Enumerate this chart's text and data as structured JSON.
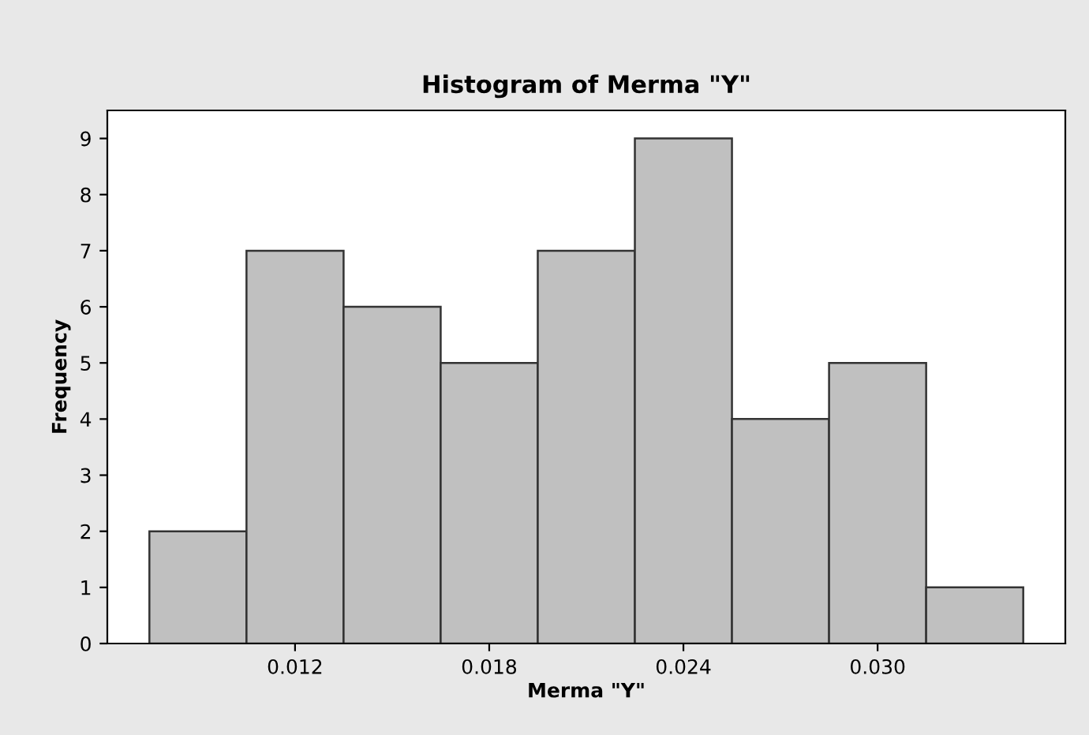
{
  "chart_data": {
    "type": "histogram",
    "title": "Histogram of Merma \"Y\"",
    "xlabel": "Merma \"Y\"",
    "ylabel": "Frequency",
    "bins": [
      0.0075,
      0.0105,
      0.0135,
      0.0165,
      0.0195,
      0.0225,
      0.0255,
      0.0285,
      0.0315,
      0.0345
    ],
    "values": [
      2,
      7,
      6,
      5,
      7,
      9,
      4,
      5,
      1
    ],
    "color": "#c0c0c0",
    "xlim": [
      0.0062,
      0.0358
    ],
    "xticks": [
      {
        "value": 0.012,
        "label": "0.012"
      },
      {
        "value": 0.018,
        "label": "0.018"
      },
      {
        "value": 0.024,
        "label": "0.024"
      },
      {
        "value": 0.03,
        "label": "0.030"
      }
    ],
    "ylim": [
      0,
      9.5
    ],
    "yticks": [
      0,
      1,
      2,
      3,
      4,
      5,
      6,
      7,
      8,
      9
    ],
    "grid": false,
    "legend": false
  }
}
